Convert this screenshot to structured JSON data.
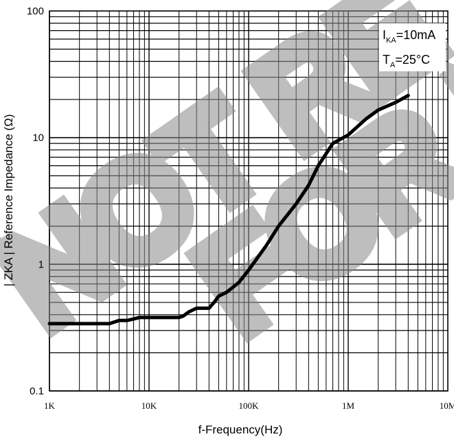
{
  "watermark": {
    "line1": "NOT RE",
    "line2": "FOR NE"
  },
  "chart_data": {
    "type": "line",
    "xscale": "log",
    "yscale": "log",
    "xlim": [
      1000,
      10000000
    ],
    "ylim": [
      0.1,
      100
    ],
    "grid": true,
    "xlabel": "f-Frequency(Hz)",
    "ylabel": "| ZKA | Reference Impedance (Ω)",
    "x_ticks": [
      "1K",
      "10K",
      "100K",
      "1M",
      "10M"
    ],
    "y_ticks": [
      "0.1",
      "1",
      "10",
      "100"
    ],
    "legend": {
      "position": "top-right",
      "line1_main": "I",
      "line1_sub": "KA",
      "line1_rest": "=10mA",
      "line2_main": "T",
      "line2_sub": "A",
      "line2_rest": "=25°C"
    },
    "series": [
      {
        "color": "#000000",
        "x": [
          1000,
          2000,
          4000,
          5000,
          6000,
          7000,
          8000,
          10000,
          15000,
          20000,
          22000,
          25000,
          30000,
          35000,
          40000,
          45000,
          50000,
          60000,
          80000,
          100000,
          150000,
          200000,
          300000,
          400000,
          500000,
          700000,
          1000000,
          1500000,
          2000000,
          3000000,
          4000000
        ],
        "y": [
          0.34,
          0.34,
          0.34,
          0.36,
          0.36,
          0.37,
          0.38,
          0.38,
          0.38,
          0.38,
          0.39,
          0.42,
          0.45,
          0.45,
          0.45,
          0.5,
          0.56,
          0.6,
          0.72,
          0.9,
          1.4,
          2.0,
          3.0,
          4.2,
          6.0,
          9.0,
          10.5,
          14.0,
          16.5,
          19.0,
          21.5
        ]
      }
    ]
  }
}
